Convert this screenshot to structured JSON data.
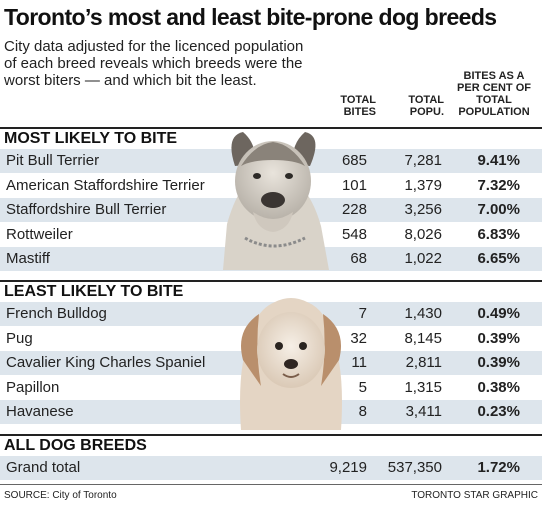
{
  "header": {
    "title": "Toronto’s most and least bite-prone dog breeds",
    "subtitle": "City data adjusted for the licenced population of each breed reveals which breeds were the worst biters — and which bit the least.",
    "col_bites": "TOTAL BITES",
    "col_popu": "TOTAL POPU.",
    "col_pct": "BITES AS A PER CENT OF TOTAL POPULATION"
  },
  "chart_data": {
    "type": "table",
    "title": "Toronto’s most and least bite-prone dog breeds",
    "columns": [
      "TOTAL BITES",
      "TOTAL POPU.",
      "BITES AS A PER CENT OF TOTAL POPULATION"
    ],
    "sections": [
      {
        "title": "MOST LIKELY TO BITE",
        "rows": [
          {
            "breed": "Pit Bull Terrier",
            "bites": "685",
            "population": "7,281",
            "pct": "9.41%"
          },
          {
            "breed": "American Staffordshire Terrier",
            "bites": "101",
            "population": "1,379",
            "pct": "7.32%"
          },
          {
            "breed": "Staffordshire Bull Terrier",
            "bites": "228",
            "population": "3,256",
            "pct": "7.00%"
          },
          {
            "breed": "Rottweiler",
            "bites": "548",
            "population": "8,026",
            "pct": "6.83%"
          },
          {
            "breed": "Mastiff",
            "bites": "68",
            "population": "1,022",
            "pct": "6.65%"
          }
        ]
      },
      {
        "title": "LEAST LIKELY TO BITE",
        "rows": [
          {
            "breed": "French Bulldog",
            "bites": "7",
            "population": "1,430",
            "pct": "0.49%"
          },
          {
            "breed": "Pug",
            "bites": "32",
            "population": "8,145",
            "pct": "0.39%"
          },
          {
            "breed": "Cavalier King Charles Spaniel",
            "bites": "11",
            "population": "2,811",
            "pct": "0.39%"
          },
          {
            "breed": "Papillon",
            "bites": "5",
            "population": "1,315",
            "pct": "0.38%"
          },
          {
            "breed": "Havanese",
            "bites": "8",
            "population": "3,411",
            "pct": "0.23%"
          }
        ]
      },
      {
        "title": "ALL DOG BREEDS",
        "rows": [
          {
            "breed": "Grand total",
            "bites": "9,219",
            "population": "537,350",
            "pct": "1.72%"
          }
        ]
      }
    ]
  },
  "footer": {
    "source": "SOURCE: City of Toronto",
    "credit": "TORONTO STAR GRAPHIC"
  },
  "images": {
    "top_dog": "pit-bull-photo",
    "bottom_dog": "havanese-photo"
  }
}
